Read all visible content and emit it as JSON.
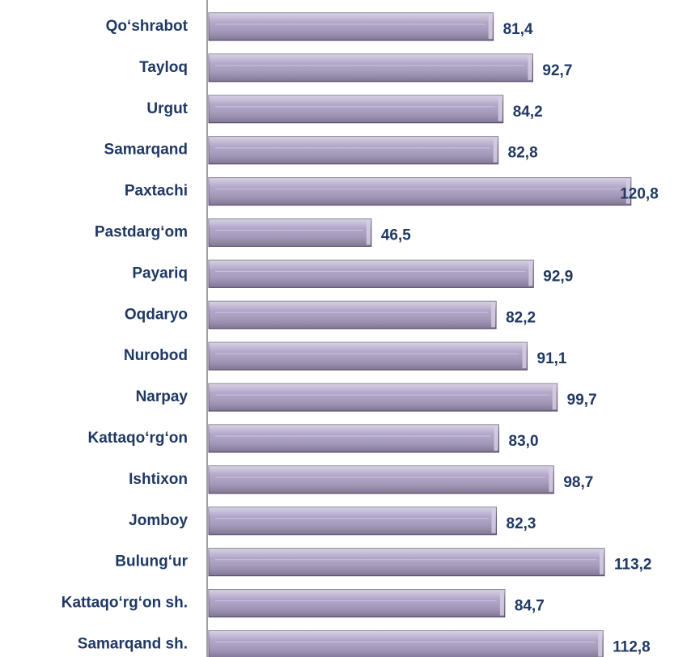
{
  "chart_data": {
    "type": "bar",
    "orientation": "horizontal",
    "categories": [
      "Qo‘shrabot",
      "Tayloq",
      "Urgut",
      "Samarqand ",
      "Paxtachi",
      "Pastdarg‘om",
      "Payariq",
      "Oqdaryo",
      "Nurobod",
      "Narpay",
      "Kattaqo‘rg‘on ",
      "Ishtixon",
      "Jomboy",
      "Bulung‘ur",
      "Kattaqo‘rg‘on sh.",
      "Samarqand sh."
    ],
    "values": [
      81.4,
      92.7,
      84.2,
      82.8,
      120.8,
      46.5,
      92.9,
      82.2,
      91.1,
      99.7,
      83.0,
      98.7,
      82.3,
      113.2,
      84.7,
      112.8
    ],
    "value_labels": [
      "81,4",
      "92,7",
      "84,2",
      "82,8",
      "120,8",
      "46,5",
      "92,9",
      "82,2",
      "91,1",
      "99,7",
      "83,0",
      "98,7",
      "82,3",
      "113,2",
      "84,7",
      "112,8"
    ],
    "color": "#a99cc2",
    "xlim": [
      0,
      122
    ]
  }
}
